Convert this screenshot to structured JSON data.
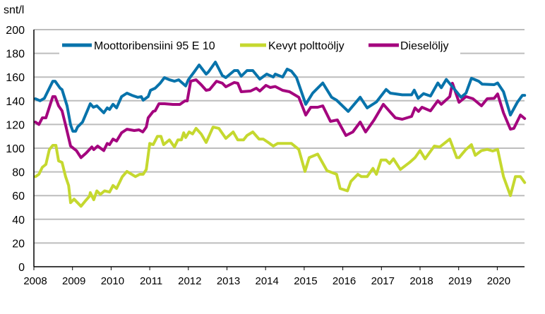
{
  "chart_data": {
    "type": "line",
    "title": "",
    "ylabel": "snt/l",
    "xlabel": "",
    "ylim": [
      0,
      200
    ],
    "xlim": [
      2008,
      2020.75
    ],
    "yticks": [
      "0",
      "20",
      "40",
      "60",
      "80",
      "100",
      "120",
      "140",
      "160",
      "180",
      "200"
    ],
    "xticks": [
      "2008",
      "2009",
      "2010",
      "2011",
      "2012",
      "2013",
      "2014",
      "2015",
      "2016",
      "2017",
      "2018",
      "2019",
      "2020"
    ],
    "grid": "horizontal",
    "legend_position": "top",
    "series": [
      {
        "name": "Moottoribensiini 95 E 10",
        "color": "#0873AB",
        "points": [
          [
            2008.04,
            141.7
          ],
          [
            2008.16,
            140
          ],
          [
            2008.27,
            142
          ],
          [
            2008.49,
            156.5
          ],
          [
            2008.55,
            156.5
          ],
          [
            2008.68,
            150.6
          ],
          [
            2008.73,
            149.4
          ],
          [
            2008.86,
            135.7
          ],
          [
            2008.95,
            119.6
          ],
          [
            2009.01,
            114.3
          ],
          [
            2009.08,
            114.3
          ],
          [
            2009.13,
            117.8
          ],
          [
            2009.26,
            122
          ],
          [
            2009.46,
            137.5
          ],
          [
            2009.54,
            134.5
          ],
          [
            2009.63,
            135.7
          ],
          [
            2009.81,
            129.8
          ],
          [
            2009.9,
            134
          ],
          [
            2009.96,
            132.7
          ],
          [
            2010.05,
            137
          ],
          [
            2010.14,
            134
          ],
          [
            2010.27,
            143.5
          ],
          [
            2010.41,
            146.4
          ],
          [
            2010.54,
            144.6
          ],
          [
            2010.69,
            142.9
          ],
          [
            2010.78,
            143.5
          ],
          [
            2010.83,
            140.5
          ],
          [
            2010.96,
            143.5
          ],
          [
            2011.02,
            148.8
          ],
          [
            2011.14,
            150.6
          ],
          [
            2011.27,
            154.8
          ],
          [
            2011.38,
            159.5
          ],
          [
            2011.51,
            157.7
          ],
          [
            2011.64,
            156.5
          ],
          [
            2011.75,
            157.7
          ],
          [
            2011.93,
            152.5
          ],
          [
            2012.0,
            157.7
          ],
          [
            2012.15,
            164.3
          ],
          [
            2012.28,
            170.2
          ],
          [
            2012.46,
            162.5
          ],
          [
            2012.52,
            164.3
          ],
          [
            2012.7,
            172.6
          ],
          [
            2012.88,
            161.3
          ],
          [
            2012.97,
            159.5
          ],
          [
            2013.19,
            165.5
          ],
          [
            2013.28,
            165.5
          ],
          [
            2013.37,
            160.7
          ],
          [
            2013.52,
            165.5
          ],
          [
            2013.67,
            165.5
          ],
          [
            2013.85,
            158.3
          ],
          [
            2014.03,
            162.5
          ],
          [
            2014.2,
            160
          ],
          [
            2014.25,
            162.5
          ],
          [
            2014.44,
            160
          ],
          [
            2014.56,
            166.7
          ],
          [
            2014.67,
            165
          ],
          [
            2014.8,
            159.5
          ],
          [
            2015.04,
            137
          ],
          [
            2015.22,
            146.4
          ],
          [
            2015.48,
            155
          ],
          [
            2015.71,
            143
          ],
          [
            2015.84,
            140.5
          ],
          [
            2016.14,
            131
          ],
          [
            2016.45,
            143
          ],
          [
            2016.63,
            134
          ],
          [
            2016.87,
            139
          ],
          [
            2017.12,
            149.5
          ],
          [
            2017.23,
            146.4
          ],
          [
            2017.54,
            145
          ],
          [
            2017.78,
            145
          ],
          [
            2017.85,
            149
          ],
          [
            2017.95,
            142
          ],
          [
            2018.09,
            146
          ],
          [
            2018.27,
            144
          ],
          [
            2018.46,
            155
          ],
          [
            2018.55,
            151
          ],
          [
            2018.68,
            158
          ],
          [
            2018.82,
            152.5
          ],
          [
            2019.06,
            143
          ],
          [
            2019.19,
            146.4
          ],
          [
            2019.33,
            159
          ],
          [
            2019.52,
            156.5
          ],
          [
            2019.61,
            154
          ],
          [
            2019.92,
            153.6
          ],
          [
            2020.01,
            155
          ],
          [
            2020.16,
            147.6
          ],
          [
            2020.34,
            128
          ],
          [
            2020.52,
            138.7
          ],
          [
            2020.65,
            144.6
          ],
          [
            2020.71,
            144.6
          ]
        ]
      },
      {
        "name": "Kevyt polttoöljy",
        "color": "#C5D82F",
        "points": [
          [
            2008.04,
            76
          ],
          [
            2008.13,
            78
          ],
          [
            2008.22,
            83.9
          ],
          [
            2008.31,
            86.3
          ],
          [
            2008.4,
            98.8
          ],
          [
            2008.49,
            102.4
          ],
          [
            2008.57,
            102.4
          ],
          [
            2008.64,
            89.3
          ],
          [
            2008.73,
            88
          ],
          [
            2008.82,
            76
          ],
          [
            2008.9,
            68.5
          ],
          [
            2008.95,
            54
          ],
          [
            2009.04,
            57
          ],
          [
            2009.22,
            51
          ],
          [
            2009.32,
            55
          ],
          [
            2009.44,
            59.5
          ],
          [
            2009.46,
            62.5
          ],
          [
            2009.55,
            56.5
          ],
          [
            2009.63,
            64
          ],
          [
            2009.72,
            61
          ],
          [
            2009.83,
            64
          ],
          [
            2009.96,
            63
          ],
          [
            2010.05,
            68.5
          ],
          [
            2010.14,
            66
          ],
          [
            2010.29,
            76
          ],
          [
            2010.41,
            80.4
          ],
          [
            2010.63,
            76
          ],
          [
            2010.74,
            78
          ],
          [
            2010.83,
            78
          ],
          [
            2010.91,
            82
          ],
          [
            2011.0,
            104
          ],
          [
            2011.09,
            103
          ],
          [
            2011.2,
            110
          ],
          [
            2011.29,
            110
          ],
          [
            2011.36,
            103
          ],
          [
            2011.51,
            107
          ],
          [
            2011.64,
            101
          ],
          [
            2011.73,
            107
          ],
          [
            2011.82,
            107
          ],
          [
            2011.88,
            113
          ],
          [
            2011.93,
            109
          ],
          [
            2012.02,
            113.7
          ],
          [
            2012.11,
            112
          ],
          [
            2012.2,
            116.7
          ],
          [
            2012.33,
            112
          ],
          [
            2012.46,
            104.8
          ],
          [
            2012.64,
            117.8
          ],
          [
            2012.79,
            116.7
          ],
          [
            2012.97,
            108.3
          ],
          [
            2013.16,
            113.7
          ],
          [
            2013.28,
            107
          ],
          [
            2013.43,
            107
          ],
          [
            2013.52,
            110.7
          ],
          [
            2013.67,
            113.7
          ],
          [
            2013.83,
            107.7
          ],
          [
            2013.94,
            107.7
          ],
          [
            2014.07,
            104.8
          ],
          [
            2014.2,
            101.8
          ],
          [
            2014.31,
            104
          ],
          [
            2014.67,
            104
          ],
          [
            2014.86,
            99
          ],
          [
            2014.98,
            85
          ],
          [
            2015.02,
            80.4
          ],
          [
            2015.13,
            92
          ],
          [
            2015.35,
            95
          ],
          [
            2015.59,
            81
          ],
          [
            2015.84,
            78
          ],
          [
            2015.93,
            66
          ],
          [
            2016.12,
            64
          ],
          [
            2016.21,
            72
          ],
          [
            2016.39,
            78
          ],
          [
            2016.48,
            76
          ],
          [
            2016.63,
            76
          ],
          [
            2016.78,
            83
          ],
          [
            2016.87,
            78
          ],
          [
            2016.99,
            90
          ],
          [
            2017.12,
            90
          ],
          [
            2017.21,
            87
          ],
          [
            2017.31,
            91
          ],
          [
            2017.49,
            82
          ],
          [
            2017.73,
            88
          ],
          [
            2017.87,
            92
          ],
          [
            2018.0,
            98
          ],
          [
            2018.13,
            91
          ],
          [
            2018.37,
            101.8
          ],
          [
            2018.51,
            101
          ],
          [
            2018.77,
            107.7
          ],
          [
            2018.95,
            92
          ],
          [
            2019.01,
            92
          ],
          [
            2019.19,
            99
          ],
          [
            2019.33,
            103
          ],
          [
            2019.43,
            94
          ],
          [
            2019.59,
            98
          ],
          [
            2019.74,
            99
          ],
          [
            2019.88,
            97.6
          ],
          [
            2020.01,
            99
          ],
          [
            2020.16,
            76
          ],
          [
            2020.34,
            60
          ],
          [
            2020.47,
            76
          ],
          [
            2020.6,
            76
          ],
          [
            2020.71,
            71
          ]
        ]
      },
      {
        "name": "Dieselöljy",
        "color": "#A4047E",
        "points": [
          [
            2008.04,
            122
          ],
          [
            2008.13,
            120
          ],
          [
            2008.22,
            125.6
          ],
          [
            2008.31,
            125.6
          ],
          [
            2008.49,
            143.5
          ],
          [
            2008.55,
            143.5
          ],
          [
            2008.64,
            135.7
          ],
          [
            2008.73,
            131.5
          ],
          [
            2008.82,
            119.6
          ],
          [
            2008.95,
            101.8
          ],
          [
            2009.1,
            98
          ],
          [
            2009.22,
            92
          ],
          [
            2009.35,
            95.8
          ],
          [
            2009.5,
            101
          ],
          [
            2009.55,
            98.8
          ],
          [
            2009.65,
            101.8
          ],
          [
            2009.81,
            98
          ],
          [
            2009.9,
            104
          ],
          [
            2009.96,
            103
          ],
          [
            2010.05,
            107.7
          ],
          [
            2010.14,
            106
          ],
          [
            2010.27,
            113
          ],
          [
            2010.41,
            116
          ],
          [
            2010.6,
            114.9
          ],
          [
            2010.72,
            115.5
          ],
          [
            2010.82,
            113.7
          ],
          [
            2010.91,
            117.8
          ],
          [
            2010.96,
            125.6
          ],
          [
            2011.09,
            131
          ],
          [
            2011.14,
            131.5
          ],
          [
            2011.24,
            137.5
          ],
          [
            2011.38,
            137.5
          ],
          [
            2011.6,
            136.9
          ],
          [
            2011.78,
            136.9
          ],
          [
            2011.91,
            139.9
          ],
          [
            2011.97,
            139.9
          ],
          [
            2012.06,
            156.5
          ],
          [
            2012.2,
            157.7
          ],
          [
            2012.33,
            153.6
          ],
          [
            2012.46,
            148.8
          ],
          [
            2012.55,
            149.4
          ],
          [
            2012.73,
            156.5
          ],
          [
            2012.88,
            154.8
          ],
          [
            2012.97,
            151.8
          ],
          [
            2013.19,
            155.4
          ],
          [
            2013.28,
            154.8
          ],
          [
            2013.37,
            147.6
          ],
          [
            2013.61,
            148.2
          ],
          [
            2013.76,
            150.6
          ],
          [
            2013.85,
            148.2
          ],
          [
            2014.01,
            153
          ],
          [
            2014.12,
            151.2
          ],
          [
            2014.25,
            152
          ],
          [
            2014.44,
            148.8
          ],
          [
            2014.62,
            147.6
          ],
          [
            2014.86,
            143
          ],
          [
            2015.04,
            128
          ],
          [
            2015.17,
            134.5
          ],
          [
            2015.35,
            134.5
          ],
          [
            2015.48,
            135.7
          ],
          [
            2015.68,
            122.6
          ],
          [
            2015.86,
            123.8
          ],
          [
            2016.08,
            110.7
          ],
          [
            2016.26,
            113.7
          ],
          [
            2016.45,
            122
          ],
          [
            2016.59,
            113.7
          ],
          [
            2016.81,
            123.8
          ],
          [
            2017.05,
            137
          ],
          [
            2017.36,
            125.6
          ],
          [
            2017.54,
            124.4
          ],
          [
            2017.78,
            126.8
          ],
          [
            2017.87,
            134
          ],
          [
            2017.96,
            131
          ],
          [
            2018.05,
            134.5
          ],
          [
            2018.27,
            131.5
          ],
          [
            2018.46,
            140
          ],
          [
            2018.55,
            137
          ],
          [
            2018.77,
            143.5
          ],
          [
            2018.84,
            154.8
          ],
          [
            2019.01,
            138.7
          ],
          [
            2019.19,
            143.5
          ],
          [
            2019.37,
            141.7
          ],
          [
            2019.59,
            135.7
          ],
          [
            2019.74,
            141.7
          ],
          [
            2019.92,
            142
          ],
          [
            2020.01,
            145.8
          ],
          [
            2020.16,
            129.8
          ],
          [
            2020.34,
            116
          ],
          [
            2020.43,
            116.7
          ],
          [
            2020.6,
            128
          ],
          [
            2020.71,
            125
          ]
        ]
      }
    ]
  }
}
